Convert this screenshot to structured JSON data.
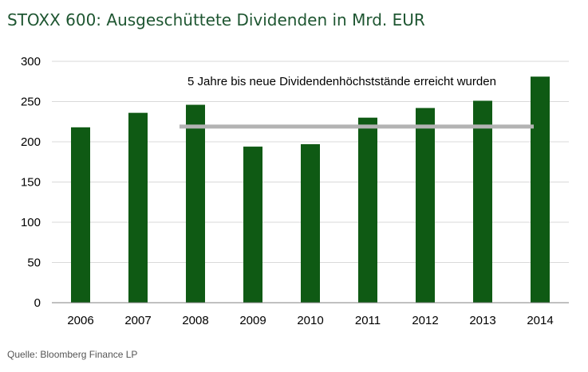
{
  "colors": {
    "bar": "#0f5a14",
    "grid": "#d9d9d9",
    "axis": "#808080",
    "reference_line": "#b3b3b3",
    "title": "#1e5631"
  },
  "chart_data": {
    "type": "bar",
    "title": "STOXX 600: Ausgeschüttete Dividenden in Mrd. EUR",
    "xlabel": "",
    "ylabel": "",
    "categories": [
      "2006",
      "2007",
      "2008",
      "2009",
      "2010",
      "2011",
      "2012",
      "2013",
      "2014"
    ],
    "values": [
      218,
      236,
      246,
      194,
      197,
      230,
      242,
      251,
      281
    ],
    "ylim": [
      0,
      300
    ],
    "yticks": [
      0,
      50,
      100,
      150,
      200,
      250,
      300
    ],
    "grid": true,
    "legend": "none",
    "reference_line": {
      "value": 218,
      "from": "2008",
      "to": "2014"
    },
    "annotation": "5 Jahre bis neue Dividendenhöchststände erreicht wurden"
  },
  "source": "Quelle: Bloomberg Finance LP"
}
